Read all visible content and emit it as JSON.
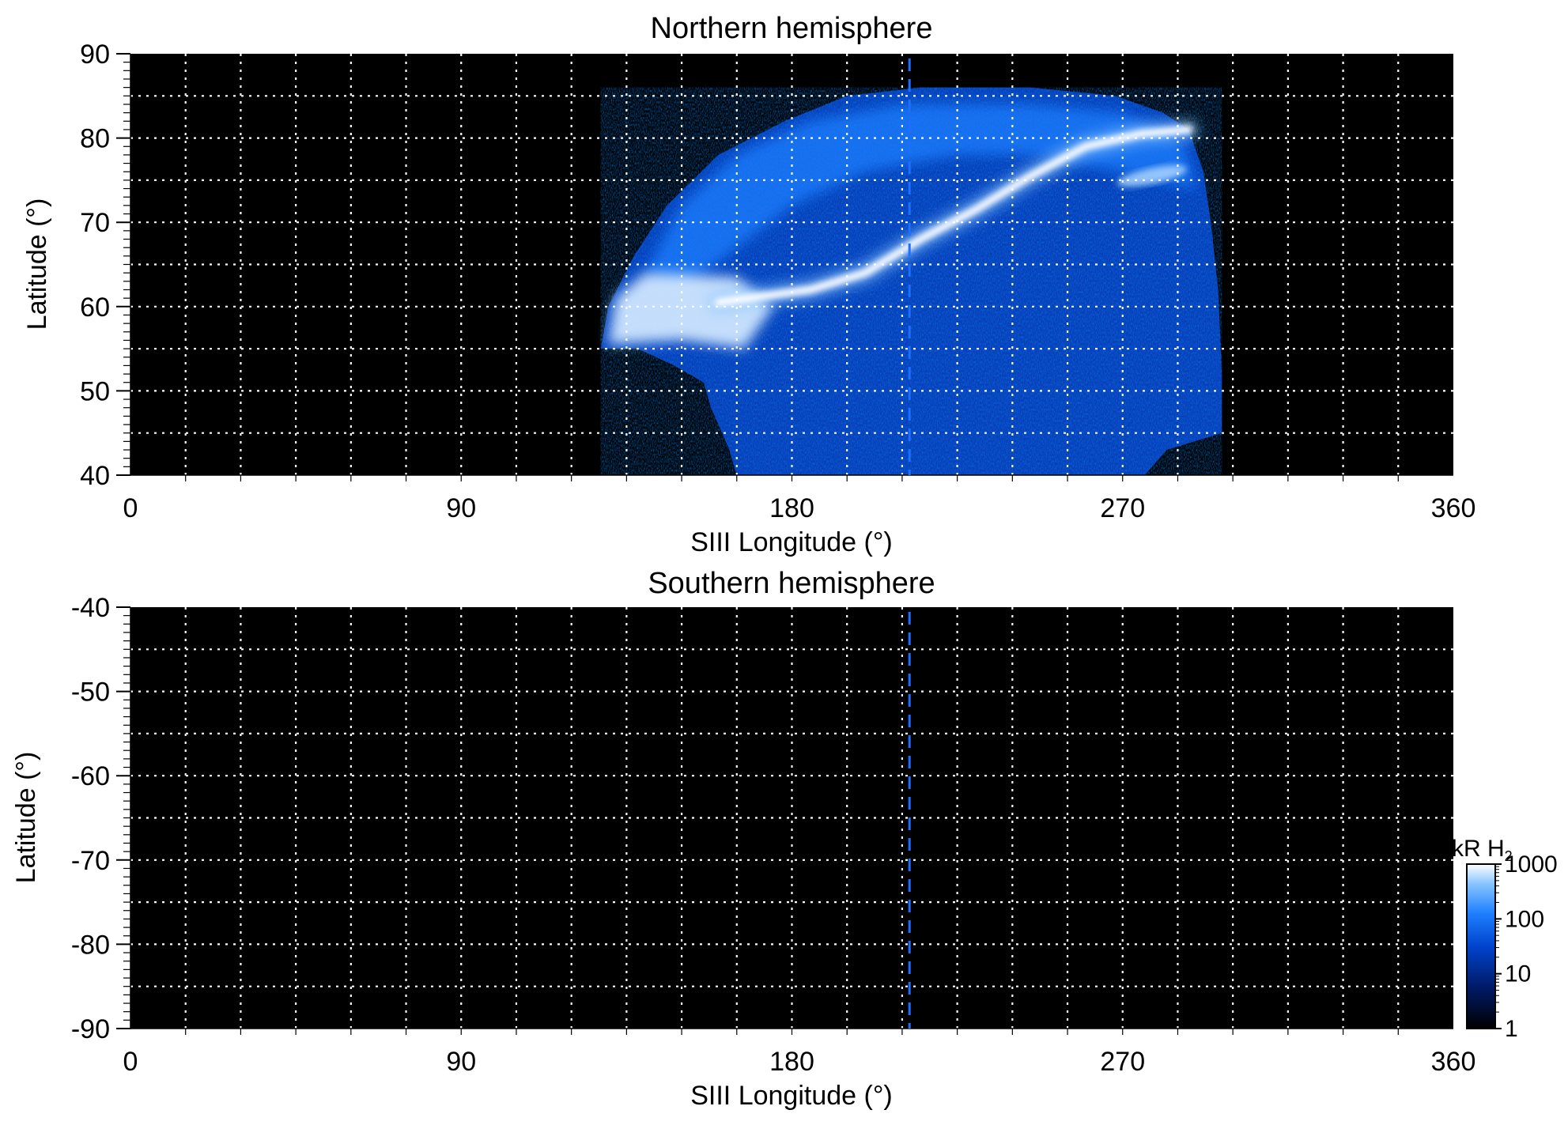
{
  "chart_data": [
    {
      "type": "heatmap",
      "title": "Northern hemisphere",
      "xlabel": "SIII Longitude (°)",
      "ylabel": "Latitude (°)",
      "xlim": [
        0,
        360
      ],
      "ylim": [
        40,
        90
      ],
      "xticks": [
        "0",
        "90",
        "180",
        "270",
        "360"
      ],
      "yticks": [
        "40",
        "50",
        "60",
        "70",
        "80",
        "90"
      ],
      "grid": true,
      "background": "#000000",
      "reference_longitude": 212,
      "emission_region": {
        "lon_range": [
          128,
          297
        ],
        "lat_range": [
          40,
          86
        ]
      },
      "main_oval": [
        [
          160,
          60.5
        ],
        [
          185,
          62
        ],
        [
          200,
          64
        ],
        [
          215,
          68
        ],
        [
          230,
          71.5
        ],
        [
          245,
          75.5
        ],
        [
          260,
          79
        ],
        [
          275,
          80.5
        ],
        [
          288,
          81
        ]
      ],
      "bright_patch": {
        "lon_range": [
          130,
          175
        ],
        "lat_range": [
          54,
          65
        ]
      }
    },
    {
      "type": "heatmap",
      "title": "Southern hemisphere",
      "xlabel": "SIII Longitude (°)",
      "ylabel": "Latitude (°)",
      "xlim": [
        0,
        360
      ],
      "ylim": [
        -90,
        -40
      ],
      "xticks": [
        "0",
        "90",
        "180",
        "270",
        "360"
      ],
      "yticks": [
        "-40",
        "-50",
        "-60",
        "-70",
        "-80",
        "-90"
      ],
      "grid": true,
      "background": "#000000",
      "reference_longitude": 212
    }
  ],
  "colorbar": {
    "label_main": "kR H",
    "label_sub": "2",
    "scale": "log",
    "range": [
      1,
      1000
    ],
    "ticks": [
      "1",
      "10",
      "100",
      "1000"
    ],
    "colors": [
      "#000000",
      "#001a66",
      "#0044cc",
      "#1e7fff",
      "#88c4ff",
      "#ffffff"
    ]
  }
}
